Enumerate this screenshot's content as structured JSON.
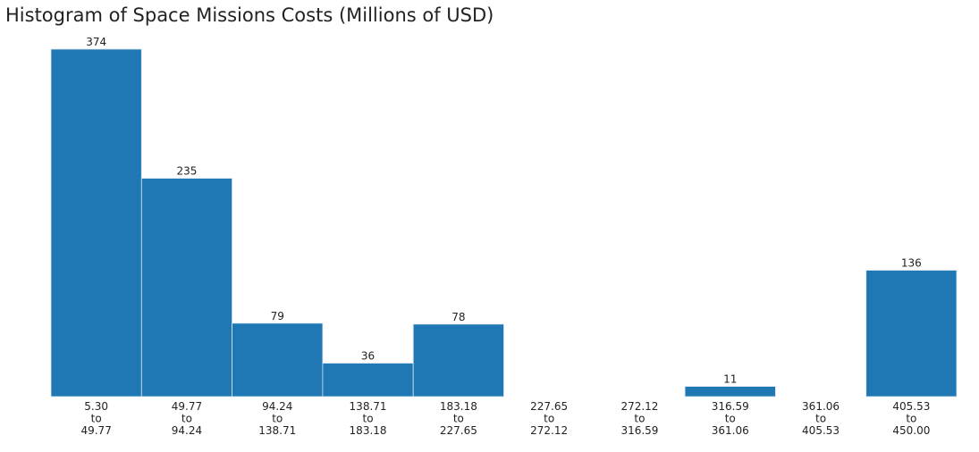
{
  "chart_data": {
    "type": "bar",
    "title": "Histogram of Space Missions Costs (Millions of USD)",
    "xlabel": "",
    "ylabel": "",
    "connector_word": "to",
    "bins": [
      {
        "start": "5.30",
        "end": "49.77",
        "count": 374
      },
      {
        "start": "49.77",
        "end": "94.24",
        "count": 235
      },
      {
        "start": "94.24",
        "end": "138.71",
        "count": 79
      },
      {
        "start": "138.71",
        "end": "183.18",
        "count": 36
      },
      {
        "start": "183.18",
        "end": "227.65",
        "count": 78
      },
      {
        "start": "227.65",
        "end": "272.12",
        "count": 0
      },
      {
        "start": "272.12",
        "end": "316.59",
        "count": 0
      },
      {
        "start": "316.59",
        "end": "361.06",
        "count": 11
      },
      {
        "start": "361.06",
        "end": "405.53",
        "count": 0
      },
      {
        "start": "405.53",
        "end": "450.00",
        "count": 136
      }
    ],
    "ylim": [
      0,
      374
    ],
    "grid": false,
    "bar_color": "#1f77b4",
    "bar_edge_color": "#d9e6f2"
  }
}
